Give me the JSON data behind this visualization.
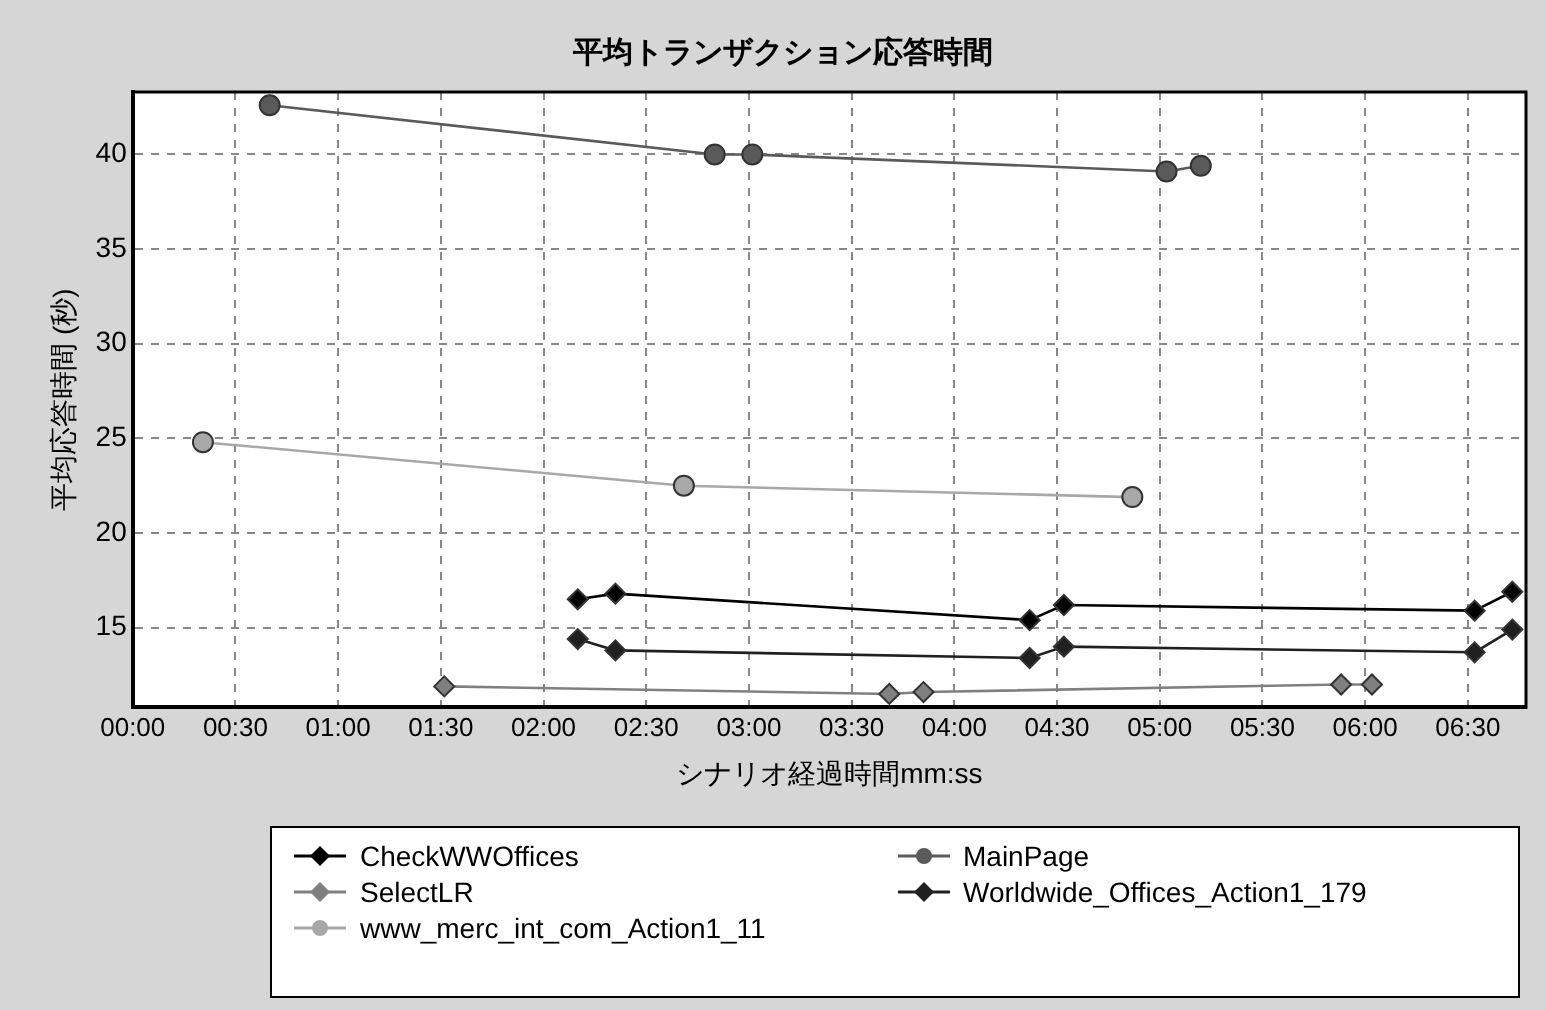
{
  "chart_data": {
    "type": "line",
    "title": "平均トランザクション応答時間",
    "xlabel": "シナリオ経過時間mm:ss",
    "ylabel": "平均応答時間 (秒)",
    "xlim": [
      0,
      407
    ],
    "ylim": [
      10.8,
      43.3
    ],
    "yticks": [
      15,
      20,
      25,
      30,
      35,
      40
    ],
    "xticks": [
      {
        "value": 0,
        "label": "00:00"
      },
      {
        "value": 30,
        "label": "00:30"
      },
      {
        "value": 60,
        "label": "01:00"
      },
      {
        "value": 90,
        "label": "01:30"
      },
      {
        "value": 120,
        "label": "02:00"
      },
      {
        "value": 150,
        "label": "02:30"
      },
      {
        "value": 180,
        "label": "03:00"
      },
      {
        "value": 210,
        "label": "03:30"
      },
      {
        "value": 240,
        "label": "04:00"
      },
      {
        "value": 270,
        "label": "04:30"
      },
      {
        "value": 300,
        "label": "05:00"
      },
      {
        "value": 330,
        "label": "05:30"
      },
      {
        "value": 360,
        "label": "06:00"
      },
      {
        "value": 390,
        "label": "06:30"
      }
    ],
    "grid": true,
    "legend": "bottom",
    "line_style": "solid",
    "series": [
      {
        "name": "CheckWWOffices",
        "color": "#000000",
        "marker": "diamond",
        "x": [
          130,
          141,
          262,
          272,
          392,
          403
        ],
        "values": [
          16.5,
          16.8,
          15.4,
          16.2,
          15.9,
          16.9
        ]
      },
      {
        "name": "MainPage",
        "color": "#5a5a5a",
        "marker": "circle",
        "x": [
          40,
          170,
          181,
          302,
          312
        ],
        "values": [
          42.6,
          40,
          40,
          39.1,
          39.4
        ]
      },
      {
        "name": "SelectLR",
        "color": "#808080",
        "marker": "diamond",
        "x": [
          91,
          221,
          231,
          353,
          362
        ],
        "values": [
          11.9,
          11.5,
          11.6,
          12.0,
          12.0
        ]
      },
      {
        "name": "Worldwide_Offices_Action1_179",
        "color": "#202020",
        "marker": "diamond",
        "x": [
          130,
          141,
          262,
          272,
          392,
          403
        ],
        "values": [
          14.4,
          13.8,
          13.4,
          14.0,
          13.7,
          14.9
        ]
      },
      {
        "name": "www_merc_int_com_Action1_11",
        "color": "#a8a8a8",
        "marker": "circle",
        "x": [
          20.5,
          161,
          292
        ],
        "values": [
          24.8,
          22.5,
          21.9
        ]
      }
    ]
  }
}
